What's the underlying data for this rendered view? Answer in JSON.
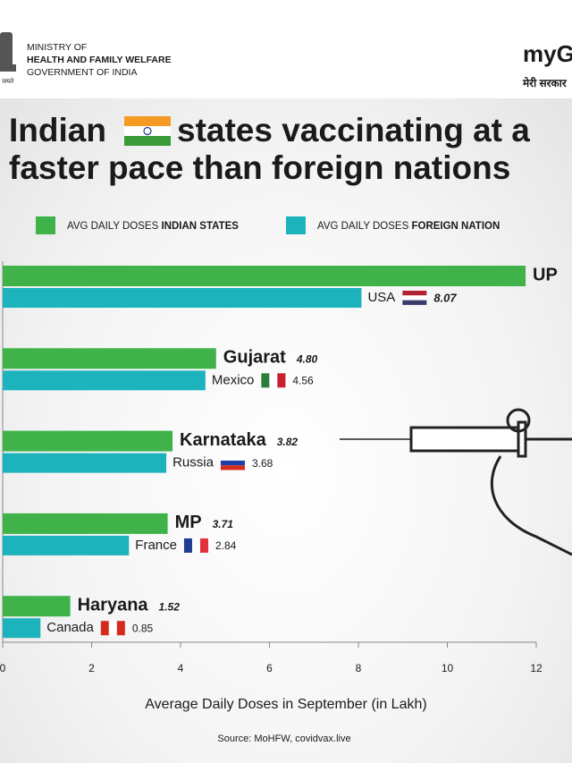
{
  "header": {
    "ministry": [
      "MINISTRY OF",
      "HEALTH AND FAMILY WELFARE",
      "GOVERNMENT OF INDIA"
    ],
    "emblem_motto": "जयते",
    "logo": "myGOV",
    "logo_tagline": "मेरी सरकार"
  },
  "chart_data": {
    "type": "bar",
    "orientation": "horizontal",
    "title": [
      "Indian",
      "states vaccinating at a",
      "faster pace than foreign nations"
    ],
    "series": [
      {
        "name": "AVG DAILY DOSES INDIAN STATES",
        "name_parts": [
          "AVG DAILY DOSES ",
          "INDIAN STATES"
        ],
        "color": "#3fb34a",
        "labels": [
          "UP",
          "Gujarat",
          "Karnataka",
          "MP",
          "Haryana"
        ],
        "values": [
          11.76,
          4.8,
          3.82,
          3.71,
          1.52
        ],
        "value_labels": [
          null,
          "4.80",
          "3.82",
          "3.71",
          "1.52"
        ]
      },
      {
        "name": "AVG DAILY DOSES FOREIGN NATION",
        "name_parts": [
          "AVG DAILY DOSES ",
          "FOREIGN NATION"
        ],
        "color": "#1db3bd",
        "labels": [
          "USA",
          "Mexico",
          "Russia",
          "France",
          "Canada"
        ],
        "values": [
          8.07,
          4.56,
          3.68,
          2.84,
          0.85
        ]
      }
    ],
    "xlim": [
      0,
      12
    ],
    "xticks": [
      0,
      2,
      4,
      6,
      8,
      10,
      12
    ],
    "xlabel": "Average Daily Doses in September (in Lakh)",
    "source": "Source: MoHFW, covidvax.live"
  }
}
